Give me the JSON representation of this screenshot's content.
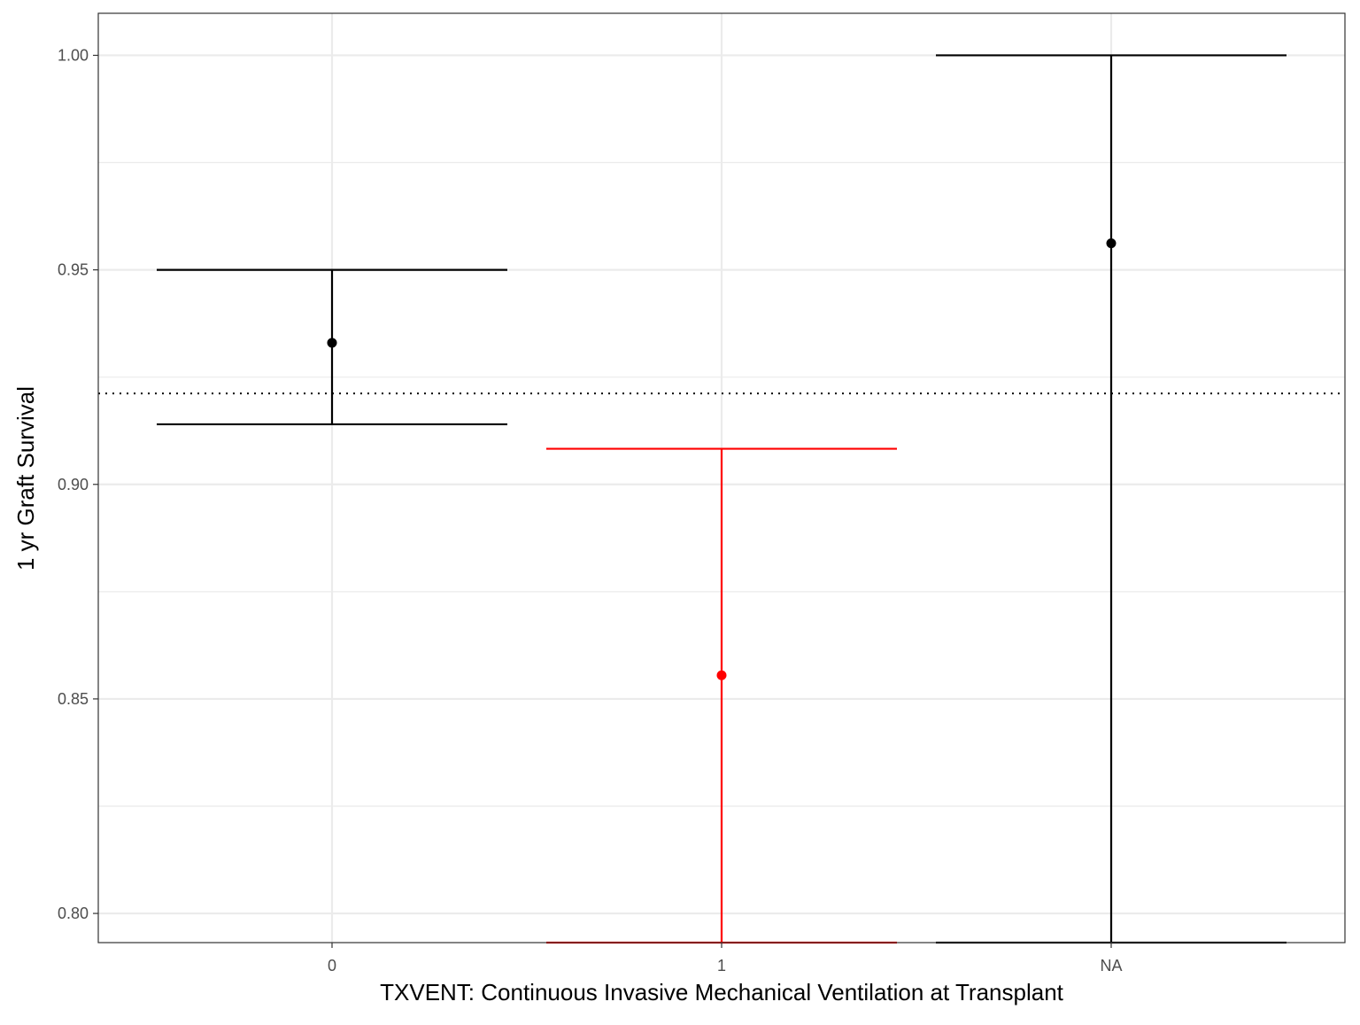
{
  "chart_data": {
    "type": "errorbar",
    "xlabel": "TXVENT: Continuous Invasive Mechanical Ventilation at Transplant",
    "ylabel": "1 yr Graft Survival",
    "categories": [
      "0",
      "1",
      "NA"
    ],
    "estimates": [
      0.933,
      0.8555,
      0.9562
    ],
    "lower": [
      0.914,
      0.7932,
      0.7932
    ],
    "upper": [
      0.95,
      0.9083,
      1.0
    ],
    "point_colors": [
      "#000000",
      "#ff0000",
      "#000000"
    ],
    "reference_line": {
      "y": 0.9212,
      "style": "dotted",
      "color": "#000000"
    },
    "ylim": [
      0.7932,
      1.0098
    ],
    "y_ticks": [
      0.8,
      0.85,
      0.9,
      0.95,
      1.0
    ],
    "y_tick_labels": [
      "0.80",
      "0.85",
      "0.90",
      "0.95",
      "1.00"
    ],
    "grid": true,
    "theme": "bw"
  }
}
